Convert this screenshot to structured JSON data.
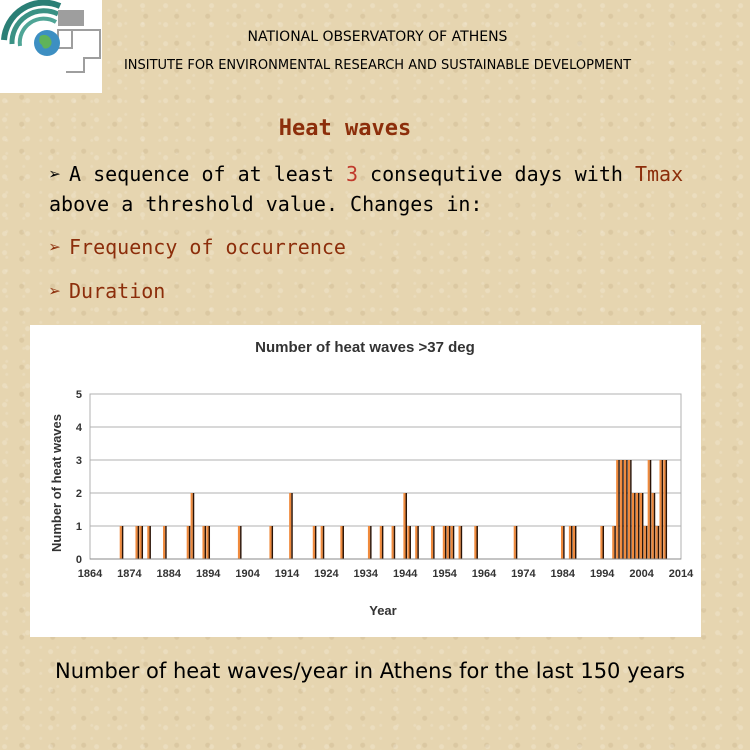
{
  "header": {
    "organization": "NATIONAL OBSERVATORY OF ATHENS",
    "institute": "INSITUTE FOR ENVIRONMENTAL RESEARCH AND SUSTAINABLE DEVELOPMENT"
  },
  "slide": {
    "title": "Heat waves",
    "bullet1": {
      "part1": "A sequence of at least ",
      "highlight_number": "3",
      "part2": " consequtive days with ",
      "highlight_var": "Tmax",
      "part3": " above a threshold value. Changes in:"
    },
    "bullet2": "Frequency of occurrence",
    "bullet3": "Duration",
    "caption": "Number of heat waves/year in Athens for the last 150 years"
  },
  "colors": {
    "title": "#8c2e0b",
    "highlight": "#c0392b",
    "bar_light": "#f08a3c",
    "bar_dark": "#2a1306"
  },
  "chart_data": {
    "type": "bar",
    "title": "Number of heat waves >37 deg",
    "xlabel": "Year",
    "ylabel": "Number of heat waves",
    "xlim": [
      1864,
      2014
    ],
    "ylim": [
      0,
      5
    ],
    "x_ticks": [
      1864,
      1874,
      1884,
      1894,
      1904,
      1914,
      1924,
      1934,
      1944,
      1954,
      1964,
      1974,
      1984,
      1994,
      2004,
      2014
    ],
    "y_ticks": [
      0,
      1,
      2,
      3,
      4,
      5
    ],
    "grid": "horizontal",
    "points": [
      {
        "year": 1872,
        "value": 1
      },
      {
        "year": 1876,
        "value": 1
      },
      {
        "year": 1877,
        "value": 1
      },
      {
        "year": 1879,
        "value": 1
      },
      {
        "year": 1883,
        "value": 1
      },
      {
        "year": 1889,
        "value": 1
      },
      {
        "year": 1890,
        "value": 2
      },
      {
        "year": 1893,
        "value": 1
      },
      {
        "year": 1894,
        "value": 1
      },
      {
        "year": 1902,
        "value": 1
      },
      {
        "year": 1910,
        "value": 1
      },
      {
        "year": 1915,
        "value": 2
      },
      {
        "year": 1921,
        "value": 1
      },
      {
        "year": 1923,
        "value": 1
      },
      {
        "year": 1928,
        "value": 1
      },
      {
        "year": 1935,
        "value": 1
      },
      {
        "year": 1938,
        "value": 1
      },
      {
        "year": 1941,
        "value": 1
      },
      {
        "year": 1944,
        "value": 2
      },
      {
        "year": 1945,
        "value": 1
      },
      {
        "year": 1947,
        "value": 1
      },
      {
        "year": 1951,
        "value": 1
      },
      {
        "year": 1954,
        "value": 1
      },
      {
        "year": 1955,
        "value": 1
      },
      {
        "year": 1956,
        "value": 1
      },
      {
        "year": 1958,
        "value": 1
      },
      {
        "year": 1962,
        "value": 1
      },
      {
        "year": 1972,
        "value": 1
      },
      {
        "year": 1984,
        "value": 1
      },
      {
        "year": 1986,
        "value": 1
      },
      {
        "year": 1987,
        "value": 1
      },
      {
        "year": 1994,
        "value": 1
      },
      {
        "year": 1997,
        "value": 1
      },
      {
        "year": 1998,
        "value": 3
      },
      {
        "year": 1999,
        "value": 3
      },
      {
        "year": 2000,
        "value": 3
      },
      {
        "year": 2001,
        "value": 3
      },
      {
        "year": 2002,
        "value": 2
      },
      {
        "year": 2003,
        "value": 2
      },
      {
        "year": 2004,
        "value": 2
      },
      {
        "year": 2005,
        "value": 1
      },
      {
        "year": 2006,
        "value": 3
      },
      {
        "year": 2007,
        "value": 2
      },
      {
        "year": 2008,
        "value": 1
      },
      {
        "year": 2009,
        "value": 3
      },
      {
        "year": 2010,
        "value": 3
      }
    ]
  }
}
